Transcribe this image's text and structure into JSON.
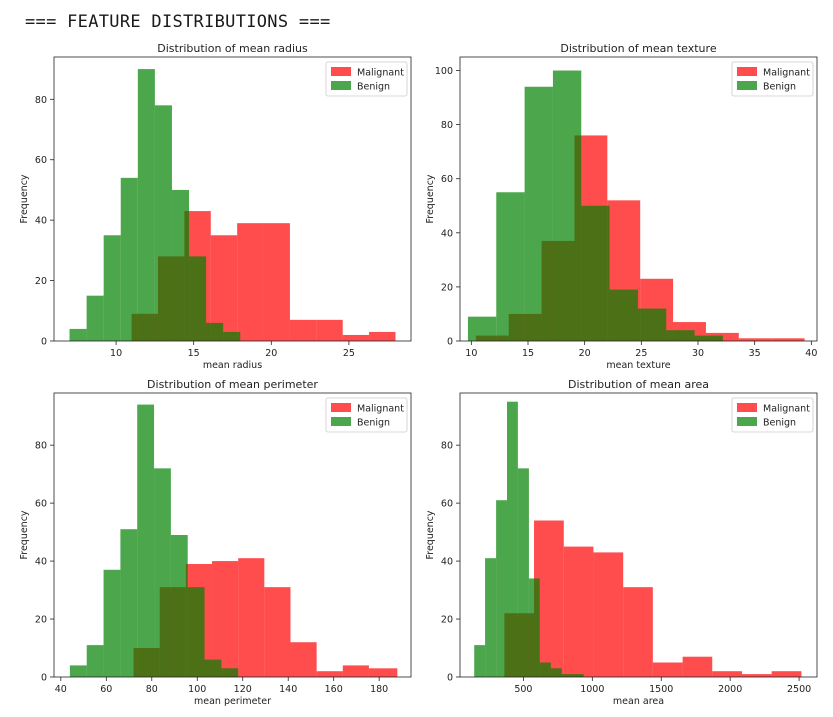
{
  "header": {
    "title": "=== FEATURE DISTRIBUTIONS ==="
  },
  "colors": {
    "malignant": "#ff0000",
    "benign": "#008000",
    "bar_alpha": 0.7,
    "frame": "#222222"
  },
  "chart_data": [
    {
      "type": "bar",
      "title": "Distribution of mean radius",
      "xlabel": "mean radius",
      "ylabel": "Frequency",
      "xlim": [
        6,
        29
      ],
      "ylim": [
        0,
        94
      ],
      "xticks": [
        10,
        15,
        20,
        25
      ],
      "yticks": [
        0,
        20,
        40,
        60,
        80
      ],
      "grid": false,
      "legend_position": "top-right",
      "series": [
        {
          "name": "Malignant",
          "edges": [
            11.0,
            12.7,
            14.4,
            16.1,
            17.8,
            19.5,
            21.2,
            22.9,
            24.6,
            26.3,
            28.0
          ],
          "counts": [
            9,
            28,
            43,
            35,
            39,
            39,
            7,
            7,
            2,
            3
          ]
        },
        {
          "name": "Benign",
          "edges": [
            7.0,
            8.1,
            9.2,
            10.3,
            11.4,
            12.5,
            13.6,
            14.7,
            15.8,
            16.9,
            18.0
          ],
          "counts": [
            4,
            15,
            35,
            54,
            90,
            78,
            50,
            28,
            6,
            3
          ]
        }
      ]
    },
    {
      "type": "bar",
      "title": "Distribution of mean texture",
      "xlabel": "mean texture",
      "ylabel": "Frequency",
      "xlim": [
        9,
        40.5
      ],
      "ylim": [
        0,
        105
      ],
      "xticks": [
        10,
        15,
        20,
        25,
        30,
        35,
        40
      ],
      "yticks": [
        0,
        20,
        40,
        60,
        80,
        100
      ],
      "grid": false,
      "legend_position": "top-right",
      "series": [
        {
          "name": "Malignant",
          "edges": [
            10.4,
            13.3,
            16.2,
            19.1,
            22.0,
            24.9,
            27.8,
            30.7,
            33.6,
            36.5,
            39.4
          ],
          "counts": [
            2,
            10,
            37,
            76,
            52,
            23,
            7,
            3,
            1,
            1
          ]
        },
        {
          "name": "Benign",
          "edges": [
            9.7,
            12.2,
            14.7,
            17.2,
            19.7,
            22.2,
            24.7,
            27.2,
            29.7,
            32.2,
            34.7
          ],
          "counts": [
            9,
            55,
            94,
            100,
            50,
            19,
            12,
            4,
            2,
            0
          ]
        }
      ]
    },
    {
      "type": "bar",
      "title": "Distribution of mean perimeter",
      "xlabel": "mean perimeter",
      "ylabel": "Frequency",
      "xlim": [
        37,
        194
      ],
      "ylim": [
        0,
        98
      ],
      "xticks": [
        40,
        60,
        80,
        100,
        120,
        140,
        160,
        180
      ],
      "yticks": [
        0,
        20,
        40,
        60,
        80
      ],
      "grid": false,
      "legend_position": "top-right",
      "series": [
        {
          "name": "Malignant",
          "edges": [
            72,
            83.5,
            95,
            106.5,
            118,
            129.5,
            141,
            152.5,
            164,
            175.5,
            188
          ],
          "counts": [
            10,
            31,
            39,
            40,
            41,
            31,
            12,
            2,
            4,
            3
          ]
        },
        {
          "name": "Benign",
          "edges": [
            44,
            51.4,
            58.8,
            66.2,
            73.6,
            81,
            88.4,
            95.8,
            103.2,
            110.6,
            118
          ],
          "counts": [
            4,
            11,
            37,
            51,
            94,
            72,
            49,
            31,
            6,
            3
          ]
        }
      ]
    },
    {
      "type": "bar",
      "title": "Distribution of mean area",
      "xlabel": "mean area",
      "ylabel": "Frequency",
      "xlim": [
        40,
        2630
      ],
      "ylim": [
        0,
        98
      ],
      "xticks": [
        500,
        1000,
        1500,
        2000,
        2500
      ],
      "yticks": [
        0,
        20,
        40,
        60,
        80
      ],
      "grid": false,
      "legend_position": "top-right",
      "series": [
        {
          "name": "Malignant",
          "edges": [
            362,
            577,
            793,
            1008,
            1224,
            1439,
            1655,
            1870,
            2086,
            2301,
            2517
          ],
          "counts": [
            22,
            54,
            45,
            43,
            31,
            5,
            7,
            2,
            1,
            2
          ]
        },
        {
          "name": "Benign",
          "edges": [
            143,
            222,
            302,
            381,
            460,
            540,
            619,
            699,
            778,
            857,
            937
          ],
          "counts": [
            11,
            41,
            61,
            95,
            72,
            34,
            5,
            3,
            1,
            1
          ]
        }
      ]
    }
  ]
}
